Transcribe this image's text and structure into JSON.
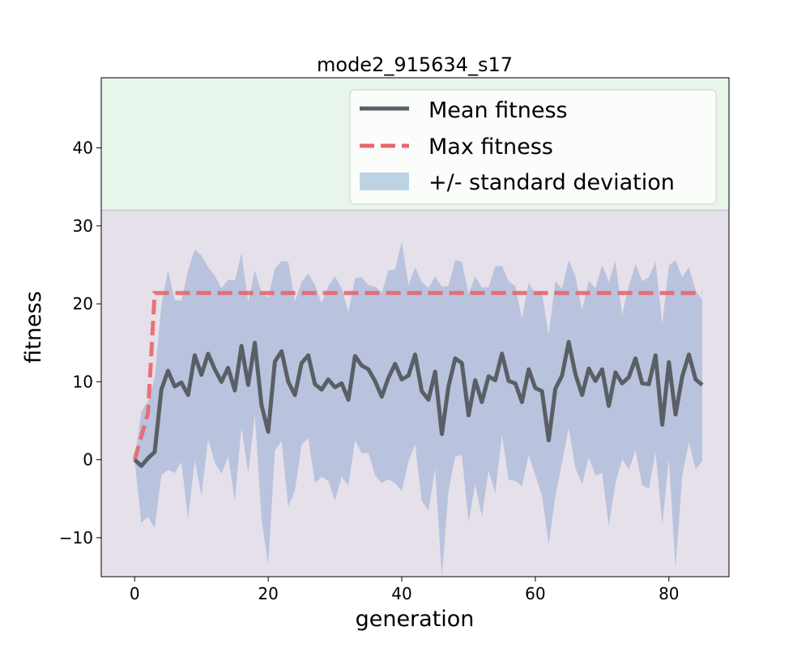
{
  "chart_data": {
    "type": "line",
    "title": "mode2_915634_s17",
    "xlabel": "generation",
    "ylabel": "fitness",
    "xlim": [
      -5,
      89
    ],
    "ylim": [
      -15,
      49
    ],
    "xticks": [
      0,
      20,
      40,
      60,
      80
    ],
    "yticks": [
      -10,
      0,
      10,
      20,
      30,
      40
    ],
    "xtick_labels": [
      "0",
      "20",
      "40",
      "60",
      "80"
    ],
    "ytick_labels": [
      "−10",
      "0",
      "10",
      "20",
      "30",
      "40"
    ],
    "threshold": 32,
    "regions": [
      {
        "from": 32,
        "to": 49,
        "color": "#e8f5ea"
      },
      {
        "from": -15,
        "to": 32,
        "color": "#e6e0ea"
      }
    ],
    "legend": {
      "position": "upper right",
      "entries": [
        "Mean fitness",
        "Max fitness",
        "+/- standard deviation"
      ]
    },
    "colors": {
      "mean": "#5a5f66",
      "max": "#e8666c",
      "band": "#a9bad8"
    },
    "x": [
      0,
      1,
      2,
      3,
      4,
      5,
      6,
      7,
      8,
      9,
      10,
      11,
      12,
      13,
      14,
      15,
      16,
      17,
      18,
      19,
      20,
      21,
      22,
      23,
      24,
      25,
      26,
      27,
      28,
      29,
      30,
      31,
      32,
      33,
      34,
      35,
      36,
      37,
      38,
      39,
      40,
      41,
      42,
      43,
      44,
      45,
      46,
      47,
      48,
      49,
      50,
      51,
      52,
      53,
      54,
      55,
      56,
      57,
      58,
      59,
      60,
      61,
      62,
      63,
      64,
      65,
      66,
      67,
      68,
      69,
      70,
      71,
      72,
      73,
      74,
      75,
      76,
      77,
      78,
      79,
      80,
      81,
      82,
      83,
      84,
      85
    ],
    "series": [
      {
        "name": "Mean fitness",
        "values": [
          0,
          -0.8,
          0.2,
          1,
          9,
          11.4,
          9.4,
          9.9,
          8.3,
          13.4,
          10.9,
          13.6,
          11.6,
          10,
          11.8,
          8.9,
          14.6,
          9.6,
          15,
          7,
          3.6,
          12.6,
          13.9,
          10,
          8.3,
          12.4,
          13.4,
          9.7,
          9,
          10.3,
          9.3,
          9.8,
          7.7,
          13.3,
          12.1,
          11.6,
          10.1,
          8.1,
          10.5,
          12.3,
          10.3,
          10.8,
          13.5,
          8.8,
          7.7,
          11.3,
          3.3,
          9.4,
          13,
          12.4,
          5.7,
          10.2,
          7.4,
          10.7,
          10.2,
          13.6,
          10.1,
          9.8,
          7.4,
          11.6,
          9.2,
          8.8,
          2.5,
          9.1,
          10.8,
          15.1,
          11,
          8.3,
          11.7,
          10.1,
          11.6,
          6.9,
          11.2,
          9.8,
          10.6,
          13,
          9.8,
          9.7,
          13.4,
          4.5,
          12.5,
          5.8,
          10.7,
          13.5,
          10.3,
          9.6
        ]
      },
      {
        "name": "Max fitness",
        "values": [
          0,
          3,
          6,
          21.4,
          21.4,
          21.4,
          21.4,
          21.4,
          21.4,
          21.4,
          21.4,
          21.4,
          21.4,
          21.4,
          21.4,
          21.4,
          21.4,
          21.4,
          21.4,
          21.4,
          21.4,
          21.4,
          21.4,
          21.4,
          21.4,
          21.4,
          21.4,
          21.4,
          21.4,
          21.4,
          21.4,
          21.4,
          21.4,
          21.4,
          21.4,
          21.4,
          21.4,
          21.4,
          21.4,
          21.4,
          21.4,
          21.4,
          21.4,
          21.4,
          21.4,
          21.4,
          21.4,
          21.4,
          21.4,
          21.4,
          21.4,
          21.4,
          21.4,
          21.4,
          21.4,
          21.4,
          21.4,
          21.4,
          21.4,
          21.4,
          21.4,
          21.4,
          21.4,
          21.4,
          21.4,
          21.4,
          21.4,
          21.4,
          21.4,
          21.4,
          21.4,
          21.4,
          21.4,
          21.4,
          21.4,
          21.4,
          21.4,
          21.4,
          21.4,
          21.4,
          21.4,
          21.4,
          21.4,
          21.4,
          21.4,
          21.4
        ]
      }
    ],
    "band": {
      "name": "+/- standard deviation",
      "upper": [
        0,
        6.2,
        7.5,
        10.5,
        19.8,
        24.3,
        20.5,
        20.4,
        24.3,
        27,
        26.2,
        24.7,
        23.6,
        22,
        23.1,
        23,
        26.5,
        20.3,
        24.3,
        21.4,
        20.8,
        24.5,
        25.5,
        25.4,
        20.3,
        22.8,
        23.9,
        22.4,
        20.1,
        22.3,
        23.5,
        22,
        18.9,
        23.3,
        23.4,
        22.4,
        22.2,
        21.4,
        24.3,
        24.4,
        28,
        22.4,
        24.7,
        22.8,
        22,
        23.5,
        22.2,
        22.3,
        25.6,
        25.4,
        21.3,
        23.5,
        22.1,
        22.1,
        24.8,
        24.9,
        22.9,
        22.3,
        18.1,
        22.7,
        21.3,
        21.5,
        16,
        22.9,
        21.9,
        25.6,
        23.5,
        19.2,
        22.9,
        22,
        25,
        22.8,
        25.5,
        18.6,
        22.3,
        25.1,
        22.9,
        23.4,
        25.4,
        17.4,
        24.9,
        25.6,
        23.4,
        24.7,
        21.7,
        20.5
      ],
      "lower": [
        0,
        -8.1,
        -7.3,
        -8.8,
        -2,
        -1.3,
        -1.7,
        -0.3,
        -7.6,
        -0.1,
        -4.6,
        2.7,
        -0.4,
        -1.8,
        0.4,
        -5.3,
        4.2,
        -1.8,
        5.8,
        -7.7,
        -13.4,
        1.2,
        2.4,
        -6,
        -4,
        1.9,
        2.8,
        -3,
        -2.2,
        -2.7,
        -5.3,
        -2.2,
        -3.3,
        2.5,
        0.8,
        0.9,
        -2,
        -3,
        -2.5,
        -3,
        -4,
        -0.2,
        2,
        -5.3,
        -6.5,
        -1.1,
        -15,
        -4,
        0.4,
        0.6,
        -8,
        -3.1,
        -7.3,
        -1.4,
        -4.3,
        3.2,
        -2.6,
        -2.7,
        -3.4,
        0.6,
        -2,
        -4.6,
        -10.9,
        -4.7,
        -0.3,
        4.1,
        -1.1,
        -3.1,
        0.3,
        -2,
        -1.7,
        -8.5,
        -3,
        0.1,
        -1.3,
        1.2,
        -3.3,
        -3.7,
        1,
        -8.4,
        0.1,
        -13.9,
        -2,
        2.2,
        -1.2,
        -0.2
      ]
    }
  }
}
